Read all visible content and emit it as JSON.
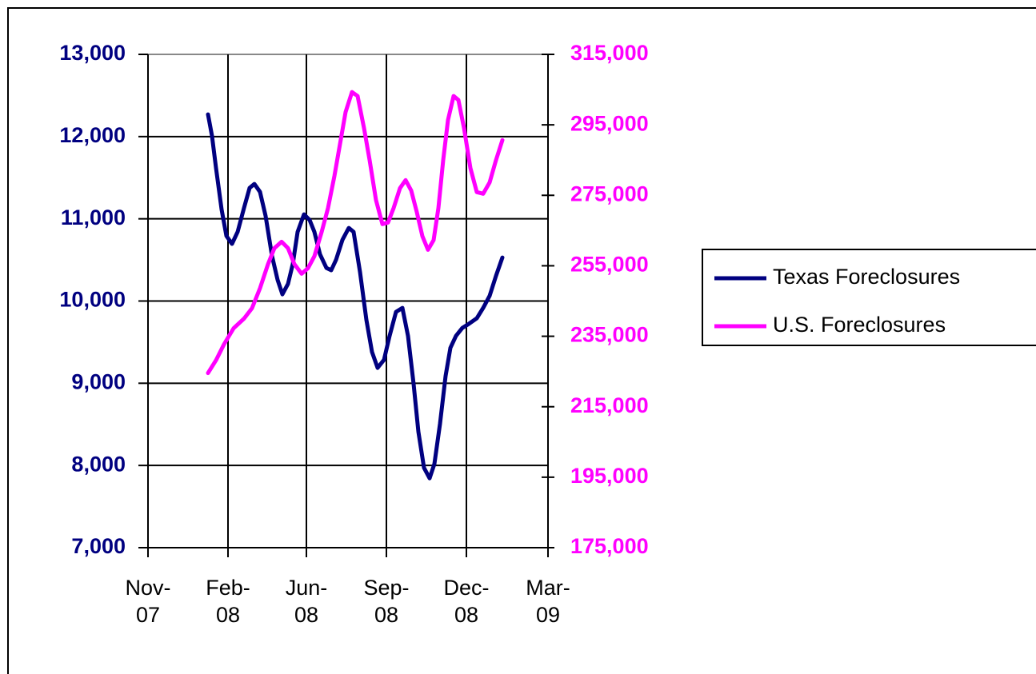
{
  "chart_data": {
    "type": "line",
    "xlim": [
      0,
      500
    ],
    "xticks": [
      {
        "value": 0,
        "label": "Nov-07"
      },
      {
        "value": 100,
        "label": "Feb-08"
      },
      {
        "value": 198,
        "label": "Jun-08"
      },
      {
        "value": 298,
        "label": "Sep-08"
      },
      {
        "value": 398,
        "label": "Dec-08"
      },
      {
        "value": 500,
        "label": "Mar-09"
      }
    ],
    "ylim": [
      7000,
      13000
    ],
    "yticks": [
      {
        "value": 7000,
        "label": "7,000"
      },
      {
        "value": 8000,
        "label": "8,000"
      },
      {
        "value": 9000,
        "label": "9,000"
      },
      {
        "value": 10000,
        "label": "10,000"
      },
      {
        "value": 11000,
        "label": "11,000"
      },
      {
        "value": 12000,
        "label": "12,000"
      },
      {
        "value": 13000,
        "label": "13,000"
      }
    ],
    "y2lim": [
      175000,
      315000
    ],
    "y2ticks": [
      {
        "value": 175000,
        "label": "175,000"
      },
      {
        "value": 195000,
        "label": "195,000"
      },
      {
        "value": 215000,
        "label": "215,000"
      },
      {
        "value": 235000,
        "label": "235,000"
      },
      {
        "value": 255000,
        "label": "255,000"
      },
      {
        "value": 275000,
        "label": "275,000"
      },
      {
        "value": 295000,
        "label": "295,000"
      },
      {
        "value": 315000,
        "label": "315,000"
      }
    ],
    "grid": true,
    "legend": "right",
    "series": [
      {
        "name": "Texas Foreclosures",
        "color": "#000080",
        "x": [
          75,
          80,
          85,
          92,
          98,
          105,
          112,
          120,
          127,
          133,
          140,
          147,
          155,
          162,
          168,
          175,
          181,
          187,
          195,
          202,
          208,
          215,
          223,
          229,
          235,
          243,
          251,
          257,
          265,
          273,
          280,
          287,
          295,
          302,
          310,
          318,
          325,
          332,
          338,
          345,
          352,
          358,
          365,
          372,
          378,
          385,
          393,
          401,
          411,
          419,
          427,
          435,
          443
        ],
        "values": [
          12270,
          12008,
          11619,
          11113,
          10792,
          10695,
          10840,
          11132,
          11375,
          11424,
          11327,
          11035,
          10549,
          10257,
          10082,
          10208,
          10451,
          10840,
          11054,
          10986,
          10840,
          10568,
          10403,
          10374,
          10500,
          10743,
          10889,
          10840,
          10354,
          9770,
          9381,
          9187,
          9284,
          9576,
          9868,
          9916,
          9576,
          8992,
          8409,
          7971,
          7844,
          8019,
          8506,
          9089,
          9430,
          9576,
          9673,
          9722,
          9790,
          9916,
          10062,
          10306,
          10529
        ]
      },
      {
        "name": "U.S. Foreclosures",
        "color": "#ff00ff",
        "axis": "y2",
        "x": [
          75,
          85,
          95,
          107,
          120,
          130,
          140,
          150,
          158,
          167,
          175,
          183,
          192,
          200,
          208,
          217,
          225,
          233,
          240,
          247,
          255,
          262,
          270,
          277,
          285,
          293,
          300,
          307,
          315,
          322,
          329,
          336,
          343,
          350,
          357,
          363,
          369,
          375,
          382,
          388,
          395,
          403,
          411,
          419,
          427,
          435,
          443
        ],
        "values": [
          224545,
          228182,
          232727,
          237273,
          240000,
          242955,
          248636,
          255455,
          260000,
          261818,
          260000,
          255455,
          252727,
          254318,
          257727,
          264545,
          271364,
          280455,
          289545,
          298636,
          304318,
          303182,
          294091,
          285000,
          273636,
          266818,
          267273,
          271364,
          277045,
          279318,
          276364,
          270227,
          263409,
          259545,
          262273,
          271364,
          285000,
          296364,
          303182,
          302045,
          294091,
          282727,
          275909,
          275455,
          278636,
          285000,
          290682
        ]
      }
    ]
  }
}
